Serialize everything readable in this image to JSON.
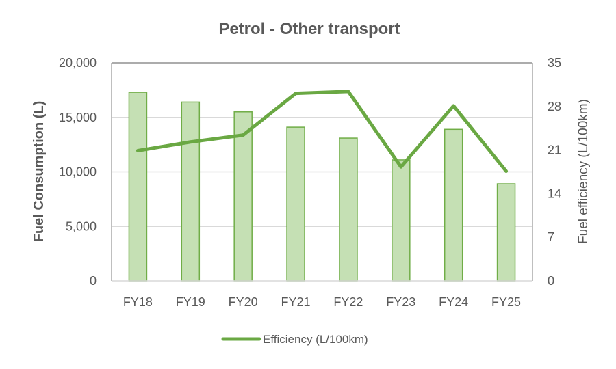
{
  "chart_data": {
    "type": "bar+line",
    "title": "Petrol - Other transport",
    "categories": [
      "FY18",
      "FY19",
      "FY20",
      "FY21",
      "FY22",
      "FY23",
      "FY24",
      "FY25"
    ],
    "series": [
      {
        "name": "Fuel Consumption (L)",
        "type": "bar",
        "axis": "left",
        "values": [
          17300,
          16400,
          15500,
          14100,
          13100,
          11100,
          13900,
          8900
        ],
        "in_legend": false
      },
      {
        "name": "Efficiency (L/100km)",
        "type": "line",
        "axis": "right",
        "values": [
          20.9,
          22.3,
          23.4,
          30.1,
          30.4,
          18.3,
          28.1,
          17.6
        ],
        "in_legend": true
      }
    ],
    "xlabel": "",
    "ylabel": "Fuel Consumption (L)",
    "y2label": "Fuel efficiency (L/100km)",
    "ylim": [
      0,
      20000
    ],
    "y2lim": [
      0,
      35
    ],
    "yticks": [
      "0",
      "5,000",
      "10,000",
      "15,000",
      "20,000"
    ],
    "y2ticks": [
      "0",
      "7",
      "14",
      "21",
      "28",
      "35"
    ],
    "grid": true,
    "legend_position": "bottom"
  },
  "colors": {
    "bar_fill": "#c5e0b4",
    "bar_stroke": "#70ad47",
    "line": "#6aa843",
    "grid": "#d9d9d9",
    "axis": "#7f7f7f",
    "text": "#595959"
  },
  "legend": {
    "items": [
      {
        "label": "Efficiency (L/100km)"
      }
    ]
  }
}
